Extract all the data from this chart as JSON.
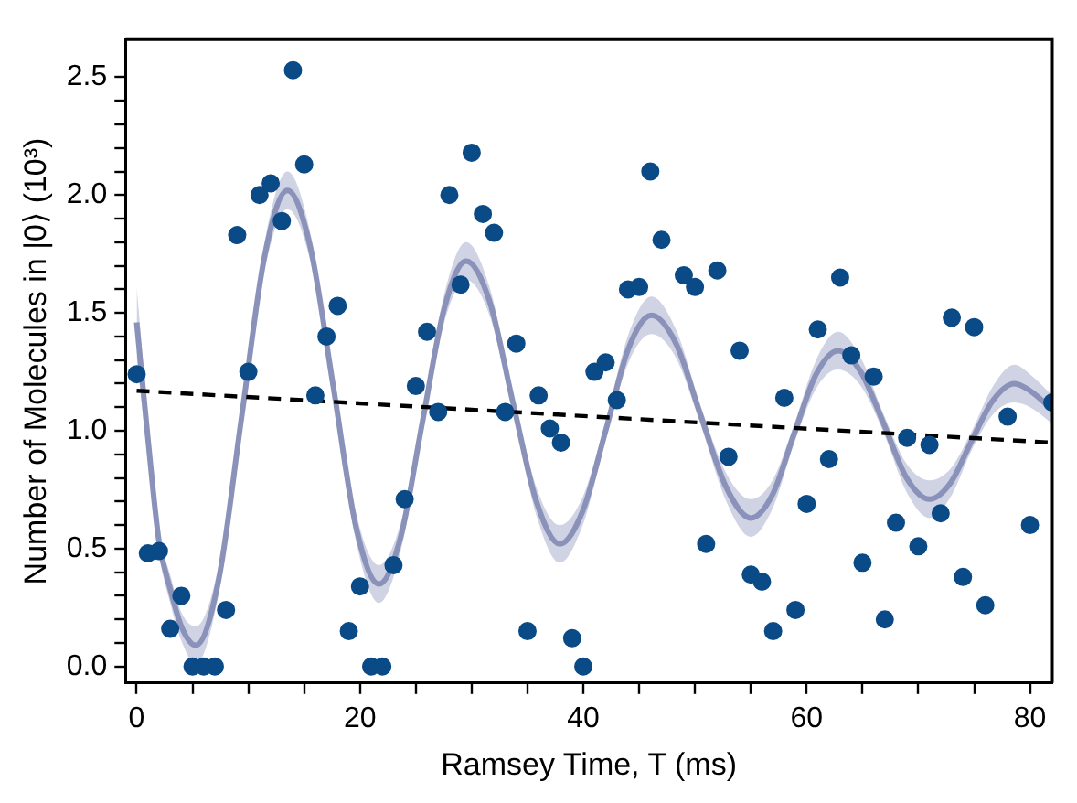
{
  "chart_data": {
    "type": "scatter",
    "xlabel": "Ramsey Time, T (ms)",
    "ylabel": "Number of Molecules in |0⟩ (10³)",
    "xlim": [
      -1,
      82
    ],
    "ylim": [
      -0.07,
      2.66
    ],
    "xticks": [
      0,
      {
        "value": 5,
        "label": null
      },
      {
        "value": 10,
        "label": null
      },
      {
        "value": 15,
        "label": null
      },
      20,
      {
        "value": 25,
        "label": null
      },
      {
        "value": 30,
        "label": null
      },
      {
        "value": 35,
        "label": null
      },
      40,
      {
        "value": 45,
        "label": null
      },
      {
        "value": 50,
        "label": null
      },
      {
        "value": 55,
        "label": null
      },
      60,
      {
        "value": 65,
        "label": null
      },
      {
        "value": 70,
        "label": null
      },
      {
        "value": 75,
        "label": null
      },
      80
    ],
    "yticks": [
      {
        "value": 0,
        "label": "0.0"
      },
      {
        "value": 0.1,
        "label": null
      },
      {
        "value": 0.2,
        "label": null
      },
      {
        "value": 0.3,
        "label": null
      },
      {
        "value": 0.4,
        "label": null
      },
      {
        "value": 0.5,
        "label": "0.5"
      },
      {
        "value": 0.6,
        "label": null
      },
      {
        "value": 0.7,
        "label": null
      },
      {
        "value": 0.8,
        "label": null
      },
      {
        "value": 0.9,
        "label": null
      },
      {
        "value": 1,
        "label": "1.0"
      },
      {
        "value": 1.1,
        "label": null
      },
      {
        "value": 1.2,
        "label": null
      },
      {
        "value": 1.3,
        "label": null
      },
      {
        "value": 1.4,
        "label": null
      },
      {
        "value": 1.5,
        "label": "1.5"
      },
      {
        "value": 1.6,
        "label": null
      },
      {
        "value": 1.7,
        "label": null
      },
      {
        "value": 1.8,
        "label": null
      },
      {
        "value": 1.9,
        "label": null
      },
      {
        "value": 2,
        "label": "2.0"
      },
      {
        "value": 2.1,
        "label": null
      },
      {
        "value": 2.2,
        "label": null
      },
      {
        "value": 2.3,
        "label": null
      },
      {
        "value": 2.4,
        "label": null
      },
      {
        "value": 2.5,
        "label": "2.5"
      }
    ],
    "grid": false,
    "legend": false,
    "series": [
      {
        "type": "line",
        "color": "#8a92ba",
        "marker": "none",
        "line_style": "solid",
        "x": [
          0,
          1,
          2,
          3,
          4,
          5.3,
          7.35,
          9.4,
          11.45,
          13.5,
          15.55,
          17.6,
          19.65,
          21.7,
          23.65,
          25.6,
          27.55,
          29.5,
          31.6,
          33.7,
          35.8,
          37.9,
          39.95,
          42,
          44.05,
          46.1,
          48.3,
          50.55,
          52.8,
          55,
          56.95,
          58.9,
          60.85,
          62.8,
          64.85,
          66.9,
          68.95,
          71,
          72.9,
          74.8,
          76.7,
          78.6,
          80,
          82
        ],
        "values": [
          1.46,
          0.97,
          0.53,
          0.33,
          0.17,
          0.09,
          0.37,
          1.06,
          1.74,
          2.02,
          1.78,
          1.19,
          0.59,
          0.35,
          0.55,
          1.04,
          1.52,
          1.72,
          1.55,
          1.12,
          0.7,
          0.52,
          0.66,
          1.0,
          1.35,
          1.49,
          1.37,
          1.06,
          0.76,
          0.63,
          0.73,
          0.99,
          1.24,
          1.34,
          1.25,
          1.03,
          0.8,
          0.71,
          0.78,
          0.96,
          1.13,
          1.2,
          1.17,
          1.09
        ],
        "lower": [
          1.31,
          0.88,
          0.48,
          0.27,
          0.11,
          0.01,
          0.31,
          1.02,
          1.68,
          1.94,
          1.72,
          1.15,
          0.53,
          0.27,
          0.49,
          1.0,
          1.46,
          1.64,
          1.49,
          1.08,
          0.64,
          0.44,
          0.6,
          0.96,
          1.29,
          1.41,
          1.31,
          1.02,
          0.7,
          0.55,
          0.67,
          0.95,
          1.18,
          1.26,
          1.19,
          0.99,
          0.74,
          0.63,
          0.72,
          0.92,
          1.07,
          1.12,
          1.1,
          1.03
        ],
        "upper": [
          1.61,
          1.06,
          0.58,
          0.39,
          0.23,
          0.17,
          0.43,
          1.1,
          1.8,
          2.1,
          1.84,
          1.23,
          0.65,
          0.43,
          0.61,
          1.08,
          1.58,
          1.8,
          1.61,
          1.16,
          0.76,
          0.6,
          0.72,
          1.04,
          1.41,
          1.57,
          1.43,
          1.1,
          0.82,
          0.71,
          0.79,
          1.03,
          1.3,
          1.42,
          1.31,
          1.07,
          0.86,
          0.79,
          0.84,
          1.0,
          1.19,
          1.28,
          1.24,
          1.15
        ]
      },
      {
        "type": "line",
        "color": "#000000",
        "marker": "none",
        "line_style": "dashed",
        "x": [
          0,
          82
        ],
        "values": [
          1.17,
          0.95
        ]
      },
      {
        "color": "#0a4a86",
        "marker": "circle",
        "x": [
          0,
          1,
          2,
          3,
          4,
          5,
          6,
          7,
          8,
          9,
          10,
          11,
          12,
          13,
          14,
          15,
          16,
          17,
          18,
          19,
          20,
          21,
          22,
          23,
          24,
          25,
          26,
          27,
          28,
          29,
          30,
          31,
          32,
          33,
          34,
          35,
          36,
          37,
          38,
          39,
          40,
          41,
          42,
          43,
          44,
          45,
          46,
          47,
          49,
          50,
          51,
          52,
          53,
          54,
          55,
          56,
          57,
          58,
          59,
          60,
          61,
          62,
          63,
          64,
          65,
          66,
          67,
          68,
          69,
          70,
          71,
          72,
          73,
          74,
          75,
          76,
          78,
          80,
          82
        ],
        "values": [
          1.24,
          0.48,
          0.49,
          0.16,
          0.3,
          0,
          0,
          0,
          0.24,
          1.83,
          1.25,
          2.0,
          2.05,
          1.89,
          2.53,
          2.13,
          1.15,
          1.4,
          1.53,
          0.15,
          0.34,
          0,
          0,
          0.43,
          0.71,
          1.19,
          1.42,
          1.08,
          2.0,
          1.62,
          2.18,
          1.92,
          1.84,
          1.08,
          1.37,
          0.15,
          1.15,
          1.01,
          0.95,
          0.12,
          0,
          1.25,
          1.29,
          1.13,
          1.6,
          1.61,
          2.1,
          1.81,
          1.66,
          1.61,
          0.52,
          1.68,
          0.89,
          1.34,
          0.39,
          0.36,
          0.15,
          1.14,
          0.24,
          0.69,
          1.43,
          0.88,
          1.65,
          1.32,
          0.44,
          1.23,
          0.2,
          0.61,
          0.97,
          0.51,
          0.94,
          0.65,
          1.48,
          0.38,
          1.44,
          0.26,
          1.06,
          0.6,
          1.12
        ]
      }
    ]
  }
}
